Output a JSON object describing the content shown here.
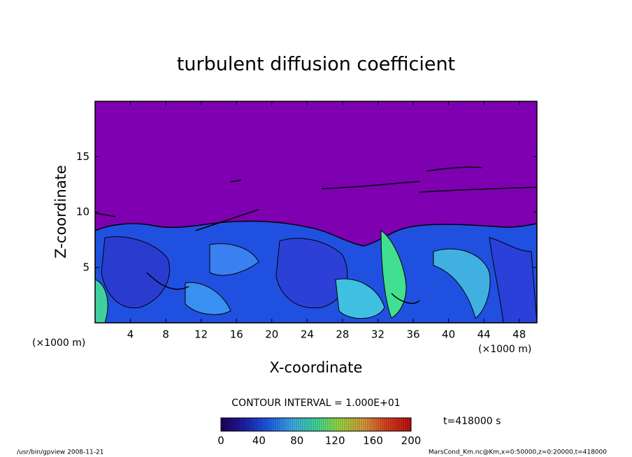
{
  "chart_data": {
    "type": "contour",
    "title": "turbulent diffusion coefficient",
    "xlabel": "X-coordinate",
    "ylabel": "Z-coordinate",
    "x_unit": "(×1000 m)",
    "xlim": [
      0,
      50
    ],
    "xticks": [
      4,
      8,
      12,
      16,
      20,
      24,
      28,
      32,
      36,
      40,
      44,
      48
    ],
    "ylim": [
      0,
      20
    ],
    "yticks": [
      5,
      10,
      15
    ],
    "contour_interval": "CONTOUR INTERVAL = 1.000E+01",
    "time": "t=418000 s",
    "clim": [
      0,
      200
    ],
    "cticks": [
      0,
      40,
      80,
      120,
      160,
      200
    ],
    "colormap": [
      "#20005a",
      "#2020b0",
      "#2060f0",
      "#40b0f0",
      "#40e0a0",
      "#a0e040",
      "#e0a040",
      "#e04020",
      "#c01010"
    ],
    "background_color": "#7f00b0",
    "footer_left": "/usr/bin/gpview   2008-11-21",
    "footer_right": "MarsCond_Km.nc@Km,x=0:50000,z=0:20000,t=418000"
  }
}
